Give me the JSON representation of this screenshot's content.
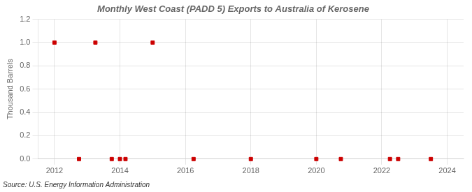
{
  "chart_data": {
    "type": "scatter",
    "title": "Monthly West Coast (PADD 5) Exports to Australia of Kerosene",
    "ylabel": "Thousand Barrels",
    "annotations": [
      "Source: U.S. Energy Information Administration"
    ],
    "x": [
      2012.0,
      2012.75,
      2013.25,
      2013.75,
      2014.0,
      2014.17,
      2015.0,
      2016.25,
      2018.0,
      2020.0,
      2020.75,
      2022.25,
      2022.5,
      2023.5
    ],
    "values": [
      1.0,
      0.0,
      1.0,
      0.0,
      0.0,
      0.0,
      1.0,
      0.0,
      0.0,
      0.0,
      0.0,
      0.0,
      0.0,
      0.0
    ],
    "color": "#cc0000",
    "marker": "square",
    "xlim": [
      2011.5,
      2024.5
    ],
    "xticks": [
      2012,
      2014,
      2016,
      2018,
      2020,
      2022,
      2024
    ],
    "ylim": [
      0.0,
      1.2
    ],
    "yticks": [
      {
        "value": 0.0,
        "label": "0.0"
      },
      0.2,
      0.4,
      0.6,
      0.8,
      {
        "value": 1.0,
        "label": "1.0"
      },
      1.2
    ],
    "grid": true
  }
}
